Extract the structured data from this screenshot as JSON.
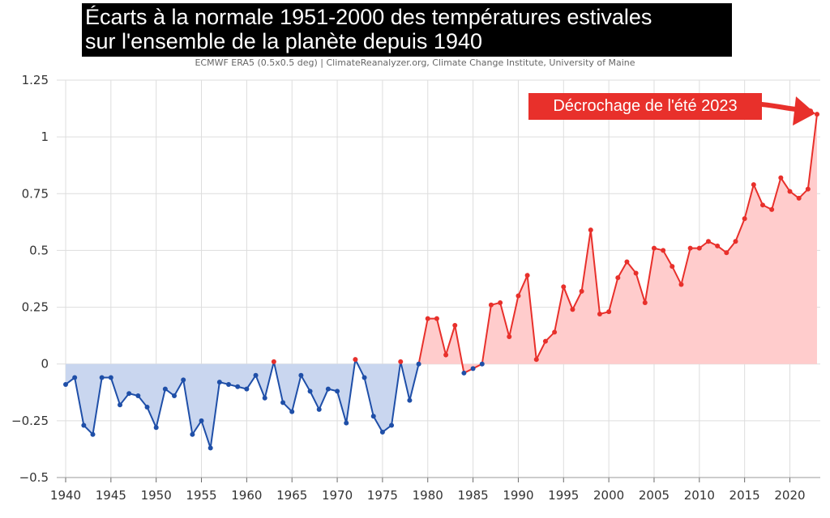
{
  "colors": {
    "negative_line": "#1f4fa8",
    "negative_fill": "#c9d6ef",
    "positive_line": "#e8302b",
    "positive_fill": "#ffcccc",
    "grid": "#dddddd",
    "annotation_bg": "#e8302b"
  },
  "chart_data": {
    "type": "area",
    "title": "Écarts à la normale 1951-2000 des températures estivales sur l'ensemble de la planète depuis 1940",
    "title_lines": [
      "Écarts à la normale 1951-2000 des températures estivales",
      "sur l'ensemble de la planète depuis 1940"
    ],
    "subtitle": "ECMWF ERA5 (0.5x0.5 deg) | ClimateReanalyzer.org, Climate Change Institute, University of Maine",
    "xlabel": "",
    "ylabel": "",
    "xlim": [
      1940,
      2023
    ],
    "ylim": [
      -0.5,
      1.25
    ],
    "x_ticks": [
      1940,
      1945,
      1950,
      1955,
      1960,
      1965,
      1970,
      1975,
      1980,
      1985,
      1990,
      1995,
      2000,
      2005,
      2010,
      2015,
      2020
    ],
    "y_ticks": [
      -0.5,
      -0.25,
      0,
      0.25,
      0.5,
      0.75,
      1,
      1.25
    ],
    "y_tick_labels": [
      "−0.5",
      "−0.25",
      "0",
      "0.25",
      "0.5",
      "0.75",
      "1",
      "1.25"
    ],
    "grid": true,
    "x": [
      1940,
      1941,
      1942,
      1943,
      1944,
      1945,
      1946,
      1947,
      1948,
      1949,
      1950,
      1951,
      1952,
      1953,
      1954,
      1955,
      1956,
      1957,
      1958,
      1959,
      1960,
      1961,
      1962,
      1963,
      1964,
      1965,
      1966,
      1967,
      1968,
      1969,
      1970,
      1971,
      1972,
      1973,
      1974,
      1975,
      1976,
      1977,
      1978,
      1979,
      1980,
      1981,
      1982,
      1983,
      1984,
      1985,
      1986,
      1987,
      1988,
      1989,
      1990,
      1991,
      1992,
      1993,
      1994,
      1995,
      1996,
      1997,
      1998,
      1999,
      2000,
      2001,
      2002,
      2003,
      2004,
      2005,
      2006,
      2007,
      2008,
      2009,
      2010,
      2011,
      2012,
      2013,
      2014,
      2015,
      2016,
      2017,
      2018,
      2019,
      2020,
      2021,
      2022,
      2023
    ],
    "values": [
      -0.09,
      -0.06,
      -0.27,
      -0.31,
      -0.06,
      -0.06,
      -0.18,
      -0.13,
      -0.14,
      -0.19,
      -0.28,
      -0.11,
      -0.14,
      -0.07,
      -0.31,
      -0.25,
      -0.37,
      -0.08,
      -0.09,
      -0.1,
      -0.11,
      -0.05,
      -0.15,
      0.01,
      -0.17,
      -0.21,
      -0.05,
      -0.12,
      -0.2,
      -0.11,
      -0.12,
      -0.26,
      0.02,
      -0.06,
      -0.23,
      -0.3,
      -0.27,
      0.01,
      -0.16,
      0.0,
      0.2,
      0.2,
      0.04,
      0.17,
      -0.04,
      -0.02,
      0.0,
      0.26,
      0.27,
      0.12,
      0.3,
      0.39,
      0.02,
      0.1,
      0.14,
      0.34,
      0.24,
      0.32,
      0.59,
      0.22,
      0.23,
      0.38,
      0.45,
      0.4,
      0.27,
      0.51,
      0.5,
      0.43,
      0.35,
      0.51,
      0.51,
      0.54,
      0.52,
      0.49,
      0.54,
      0.64,
      0.79,
      0.7,
      0.68,
      0.82,
      0.76,
      0.73,
      0.77,
      1.1
    ],
    "annotations": [
      {
        "text": "Décrochage de l'été 2023",
        "x": 2023,
        "y": 1.1
      }
    ]
  }
}
